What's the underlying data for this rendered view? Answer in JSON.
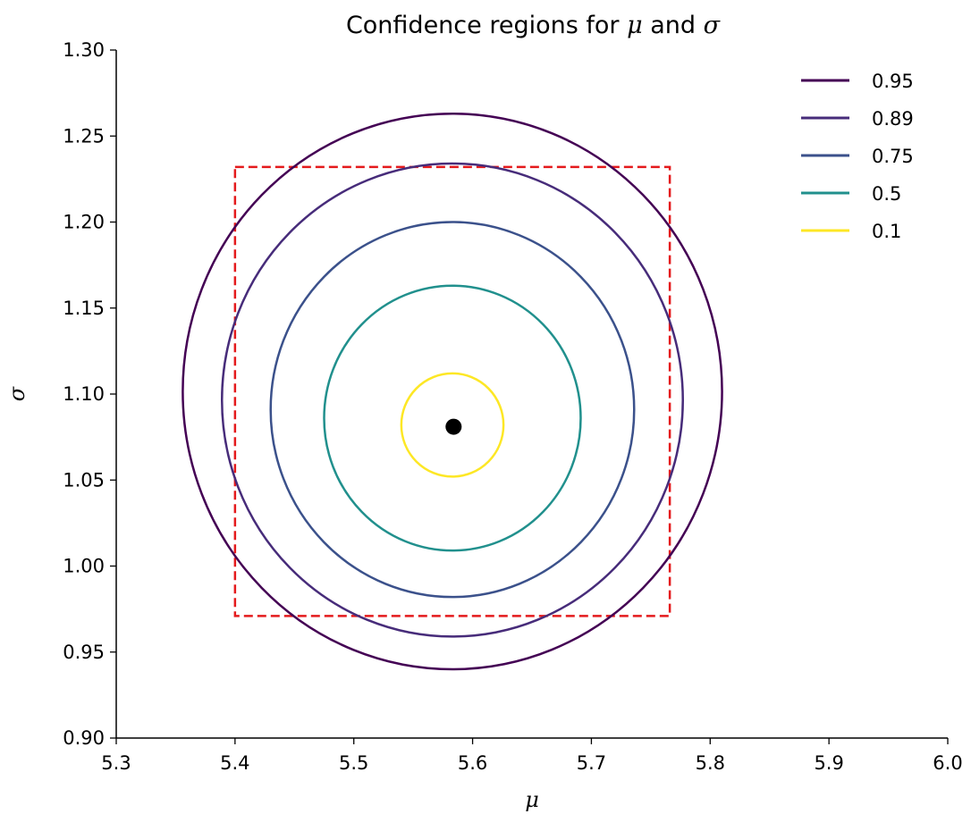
{
  "chart_data": {
    "type": "line",
    "title": {
      "prefix": "Confidence regions for ",
      "mu": "μ",
      "and": " and ",
      "sigma": "σ"
    },
    "xlabel": "μ",
    "ylabel": "σ",
    "xlim": [
      5.3,
      6.0
    ],
    "ylim": [
      0.9,
      1.3
    ],
    "xticks": [
      "5.3",
      "5.4",
      "5.5",
      "5.6",
      "5.7",
      "5.8",
      "5.9",
      "6.0"
    ],
    "yticks": [
      "0.90",
      "0.95",
      "1.00",
      "1.05",
      "1.10",
      "1.15",
      "1.20",
      "1.25",
      "1.30"
    ],
    "grid": false,
    "legend_position": "top-right",
    "series": [
      {
        "name": "0.95",
        "color": "#440154",
        "shape": "ellipse",
        "center": [
          5.583,
          1.101
        ],
        "x_range": [
          5.356,
          5.81
        ],
        "y_range": [
          0.94,
          1.263
        ]
      },
      {
        "name": "0.89",
        "color": "#472c7a",
        "shape": "ellipse",
        "center": [
          5.583,
          1.097
        ],
        "x_range": [
          5.389,
          5.777
        ],
        "y_range": [
          0.959,
          1.234
        ]
      },
      {
        "name": "0.75",
        "color": "#3b518b",
        "shape": "ellipse",
        "center": [
          5.583,
          1.091
        ],
        "x_range": [
          5.43,
          5.736
        ],
        "y_range": [
          0.982,
          1.2
        ]
      },
      {
        "name": "0.5",
        "color": "#21908d",
        "shape": "ellipse",
        "center": [
          5.583,
          1.086
        ],
        "x_range": [
          5.475,
          5.691
        ],
        "y_range": [
          1.009,
          1.163
        ]
      },
      {
        "name": "0.1",
        "color": "#fde725",
        "shape": "ellipse",
        "center": [
          5.583,
          1.082
        ],
        "x_range": [
          5.54,
          5.626
        ],
        "y_range": [
          1.052,
          1.112
        ]
      }
    ],
    "rectangle": {
      "style": "dashed",
      "color": "#e41a1c",
      "x_range": [
        5.4,
        5.766
      ],
      "y_range": [
        0.971,
        1.232
      ]
    },
    "point": {
      "x": 5.584,
      "y": 1.081,
      "color": "#000000"
    }
  }
}
